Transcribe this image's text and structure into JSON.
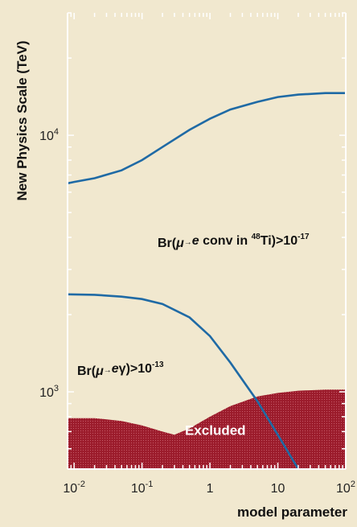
{
  "chart_data": {
    "type": "line",
    "xlabel": "model parameter",
    "ylabel": "New Physics Scale (TeV)",
    "x_scale": "log",
    "y_scale": "log",
    "xlim": [
      0.008,
      100
    ],
    "ylim": [
      500,
      30000
    ],
    "x_ticks": [
      {
        "value": 0.01,
        "base": "10",
        "exp": "-2"
      },
      {
        "value": 0.1,
        "base": "10",
        "exp": "-1"
      },
      {
        "value": 1,
        "base": "1",
        "exp": ""
      },
      {
        "value": 10,
        "base": "10",
        "exp": ""
      },
      {
        "value": 100,
        "base": "10",
        "exp": "2"
      }
    ],
    "y_ticks": [
      {
        "value": 1000,
        "base": "10",
        "exp": "3"
      },
      {
        "value": 10000,
        "base": "10",
        "exp": "4"
      }
    ],
    "series": [
      {
        "label_parts": [
          "Br(",
          "μ",
          "→",
          "e",
          " conv in ",
          "48",
          "Ti)>10",
          "-17"
        ],
        "color": "#1f6aa5",
        "x": [
          0.008,
          0.01,
          0.02,
          0.05,
          0.1,
          0.2,
          0.5,
          1,
          2,
          5,
          10,
          20,
          50,
          100
        ],
        "y": [
          6500,
          6580,
          6800,
          7300,
          8000,
          9000,
          10500,
          11600,
          12600,
          13500,
          14100,
          14400,
          14600,
          14600
        ]
      },
      {
        "label_parts": [
          "Br(",
          "μ",
          "→",
          "e",
          "γ)>10",
          "-13"
        ],
        "color": "#1f6aa5",
        "x": [
          0.008,
          0.02,
          0.05,
          0.1,
          0.2,
          0.5,
          1,
          2,
          5,
          10,
          20
        ],
        "y": [
          2400,
          2390,
          2350,
          2300,
          2200,
          1950,
          1650,
          1300,
          920,
          680,
          500
        ]
      }
    ],
    "excluded_region": {
      "label": "Excluded",
      "color": "#9b1b2b",
      "x": [
        0.008,
        0.02,
        0.05,
        0.1,
        0.2,
        0.3,
        0.5,
        1,
        2,
        5,
        10,
        20,
        50,
        100
      ],
      "y": [
        790,
        790,
        770,
        740,
        700,
        680,
        720,
        800,
        880,
        960,
        990,
        1010,
        1020,
        1020
      ]
    }
  }
}
